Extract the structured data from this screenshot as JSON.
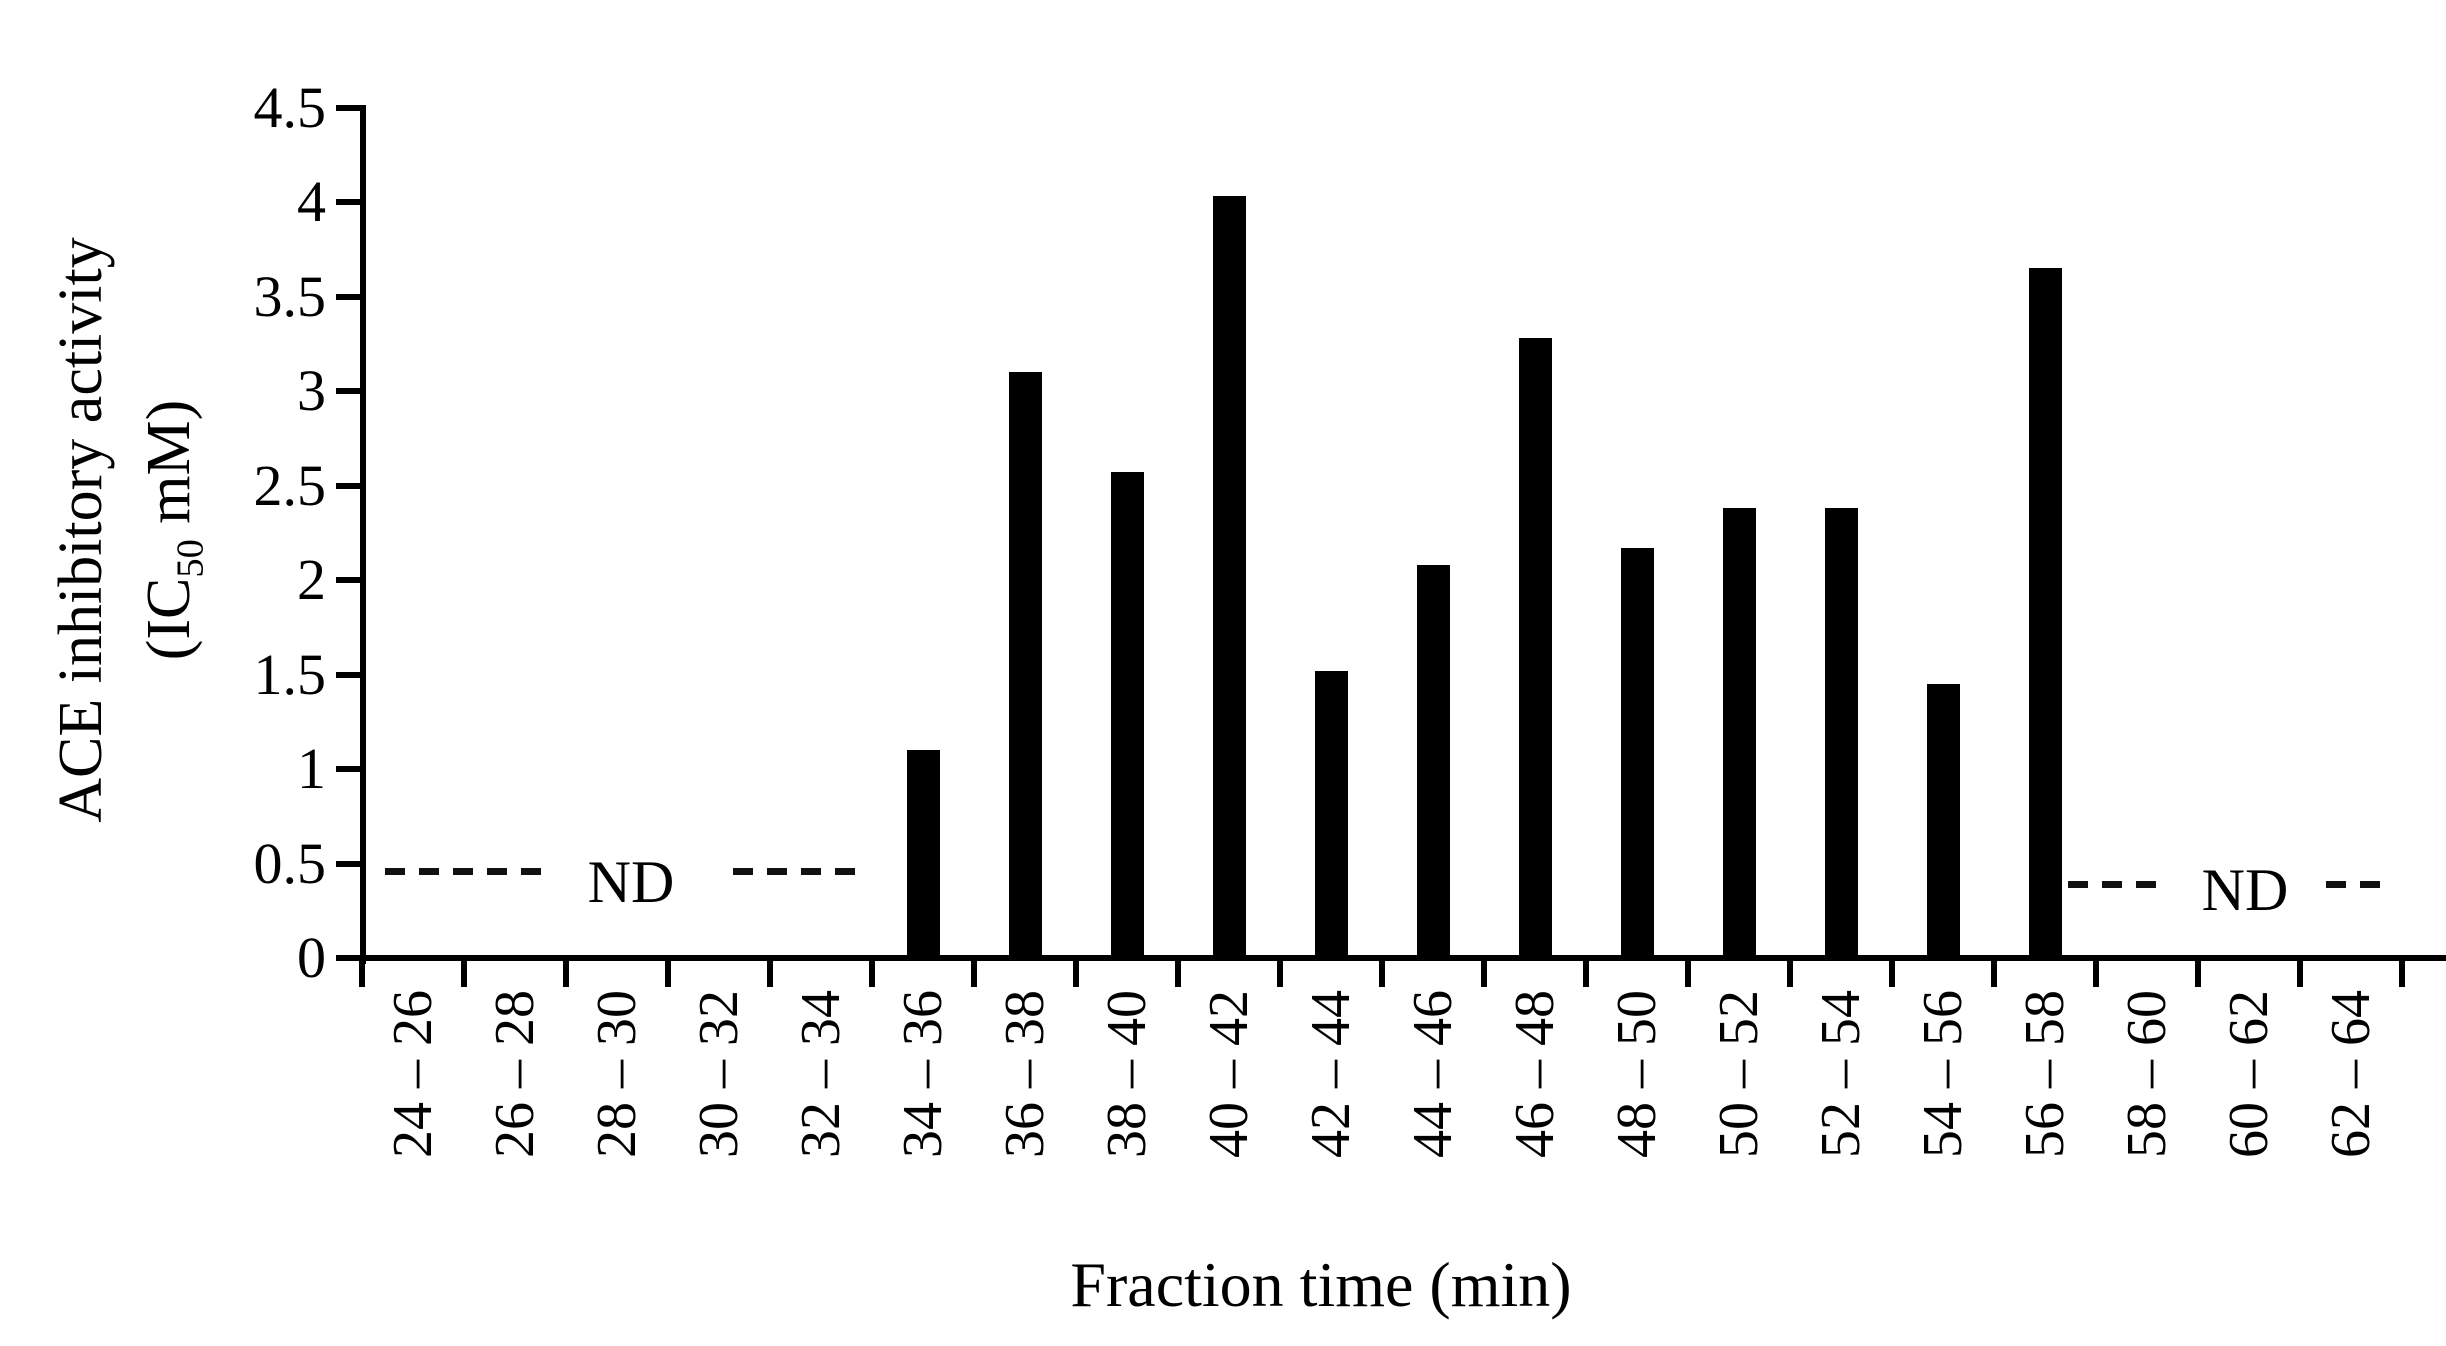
{
  "chart_data": {
    "type": "bar",
    "title": "",
    "xlabel": "Fraction time (min)",
    "ylabel": "ACE inhibitory activity (IC50 mM)",
    "ylabel_lines": {
      "line1": "ACE inhibitory activity",
      "line2_pre": "(IC",
      "line2_sub": "50",
      "line2_post": " mM)"
    },
    "categories": [
      "24 – 26",
      "26 – 28",
      "28 – 30",
      "30 – 32",
      "32 – 34",
      "34 – 36",
      "36 – 38",
      "38 – 40",
      "40 – 42",
      "42 – 44",
      "44 – 46",
      "46 – 48",
      "48 – 50",
      "50 – 52",
      "52 – 54",
      "54 – 56",
      "56 – 58",
      "58 – 60",
      "60 – 62",
      "62 – 64"
    ],
    "values": [
      null,
      null,
      null,
      null,
      null,
      1.1,
      3.1,
      2.57,
      4.03,
      1.52,
      2.08,
      3.28,
      2.17,
      2.38,
      2.38,
      1.45,
      3.65,
      null,
      null,
      null
    ],
    "ylim": [
      0,
      4.5
    ],
    "ytick_step": 0.5,
    "ytick_labels": [
      "0",
      "0.5",
      "1",
      "1.5",
      "2",
      "2.5",
      "3",
      "3.5",
      "4",
      "4.5"
    ],
    "grid": false,
    "legend": null,
    "bar_color": "#000000",
    "background_color": "#ffffff",
    "nd_annotations": [
      {
        "text": "ND",
        "side": "left",
        "categories": [
          "24 – 26",
          "26 – 28",
          "28 – 30",
          "30 – 32",
          "32 – 34"
        ]
      },
      {
        "text": "ND",
        "side": "right",
        "categories": [
          "58 – 60",
          "60 – 62",
          "62 – 64"
        ]
      }
    ]
  }
}
